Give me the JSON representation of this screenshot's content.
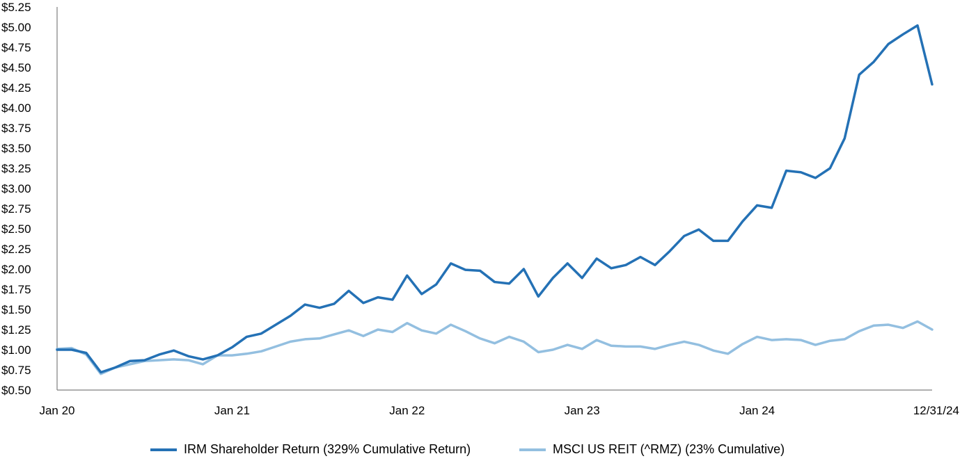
{
  "chart_data": {
    "type": "line",
    "title": "",
    "xlabel": "",
    "ylabel": "",
    "ylim": [
      0.5,
      5.25
    ],
    "yticks": [
      {
        "value": 0.5,
        "label": "$0.50"
      },
      {
        "value": 0.75,
        "label": "$0.75"
      },
      {
        "value": 1.0,
        "label": "$1.00"
      },
      {
        "value": 1.25,
        "label": "$1.25"
      },
      {
        "value": 1.5,
        "label": "$1.50"
      },
      {
        "value": 1.75,
        "label": "$1.75"
      },
      {
        "value": 2.0,
        "label": "$2.00"
      },
      {
        "value": 2.25,
        "label": "$2.25"
      },
      {
        "value": 2.5,
        "label": "$2.50"
      },
      {
        "value": 2.75,
        "label": "$2.75"
      },
      {
        "value": 3.0,
        "label": "$3.00"
      },
      {
        "value": 3.25,
        "label": "$3.25"
      },
      {
        "value": 3.5,
        "label": "$3.50"
      },
      {
        "value": 3.75,
        "label": "$3.75"
      },
      {
        "value": 4.0,
        "label": "$4.00"
      },
      {
        "value": 4.25,
        "label": "$4.25"
      },
      {
        "value": 4.5,
        "label": "$4.50"
      },
      {
        "value": 4.75,
        "label": "$4.75"
      },
      {
        "value": 5.0,
        "label": "$5.00"
      },
      {
        "value": 5.25,
        "label": "$5.25"
      }
    ],
    "xticks": [
      {
        "index": 0,
        "label": "Jan 20"
      },
      {
        "index": 12,
        "label": "Jan 21"
      },
      {
        "index": 24,
        "label": "Jan 22"
      },
      {
        "index": 36,
        "label": "Jan 23"
      },
      {
        "index": 48,
        "label": "Jan 24"
      },
      {
        "index": 60,
        "label": "12/31/24"
      }
    ],
    "x_count": 61,
    "series": [
      {
        "name": "IRM Shareholder Return (329% Cumulative Return)",
        "color": "#2471b5",
        "values": [
          1.0,
          1.0,
          0.96,
          0.72,
          0.78,
          0.86,
          0.87,
          0.94,
          0.99,
          0.92,
          0.88,
          0.93,
          1.03,
          1.16,
          1.2,
          1.31,
          1.42,
          1.56,
          1.52,
          1.57,
          1.73,
          1.58,
          1.65,
          1.62,
          1.92,
          1.69,
          1.81,
          2.07,
          1.99,
          1.98,
          1.84,
          1.82,
          2.0,
          1.66,
          1.89,
          2.07,
          1.89,
          2.13,
          2.01,
          2.05,
          2.15,
          2.05,
          2.22,
          2.41,
          2.49,
          2.35,
          2.35,
          2.59,
          2.79,
          2.76,
          3.22,
          3.2,
          3.13,
          3.25,
          3.62,
          4.41,
          4.57,
          4.79,
          4.91,
          5.02,
          4.29
        ]
      },
      {
        "name": "MSCI US REIT (^RMZ) (23% Cumulative)",
        "color": "#93bfe0",
        "values": [
          1.01,
          1.02,
          0.94,
          0.7,
          0.78,
          0.82,
          0.86,
          0.87,
          0.88,
          0.87,
          0.82,
          0.93,
          0.93,
          0.95,
          0.98,
          1.04,
          1.1,
          1.13,
          1.14,
          1.19,
          1.24,
          1.17,
          1.25,
          1.22,
          1.33,
          1.24,
          1.2,
          1.31,
          1.23,
          1.14,
          1.08,
          1.16,
          1.1,
          0.97,
          1.0,
          1.06,
          1.01,
          1.12,
          1.05,
          1.04,
          1.04,
          1.01,
          1.06,
          1.1,
          1.06,
          0.99,
          0.95,
          1.07,
          1.16,
          1.12,
          1.13,
          1.12,
          1.06,
          1.11,
          1.13,
          1.23,
          1.3,
          1.31,
          1.27,
          1.35,
          1.25
        ]
      }
    ],
    "legend_position": "bottom"
  }
}
